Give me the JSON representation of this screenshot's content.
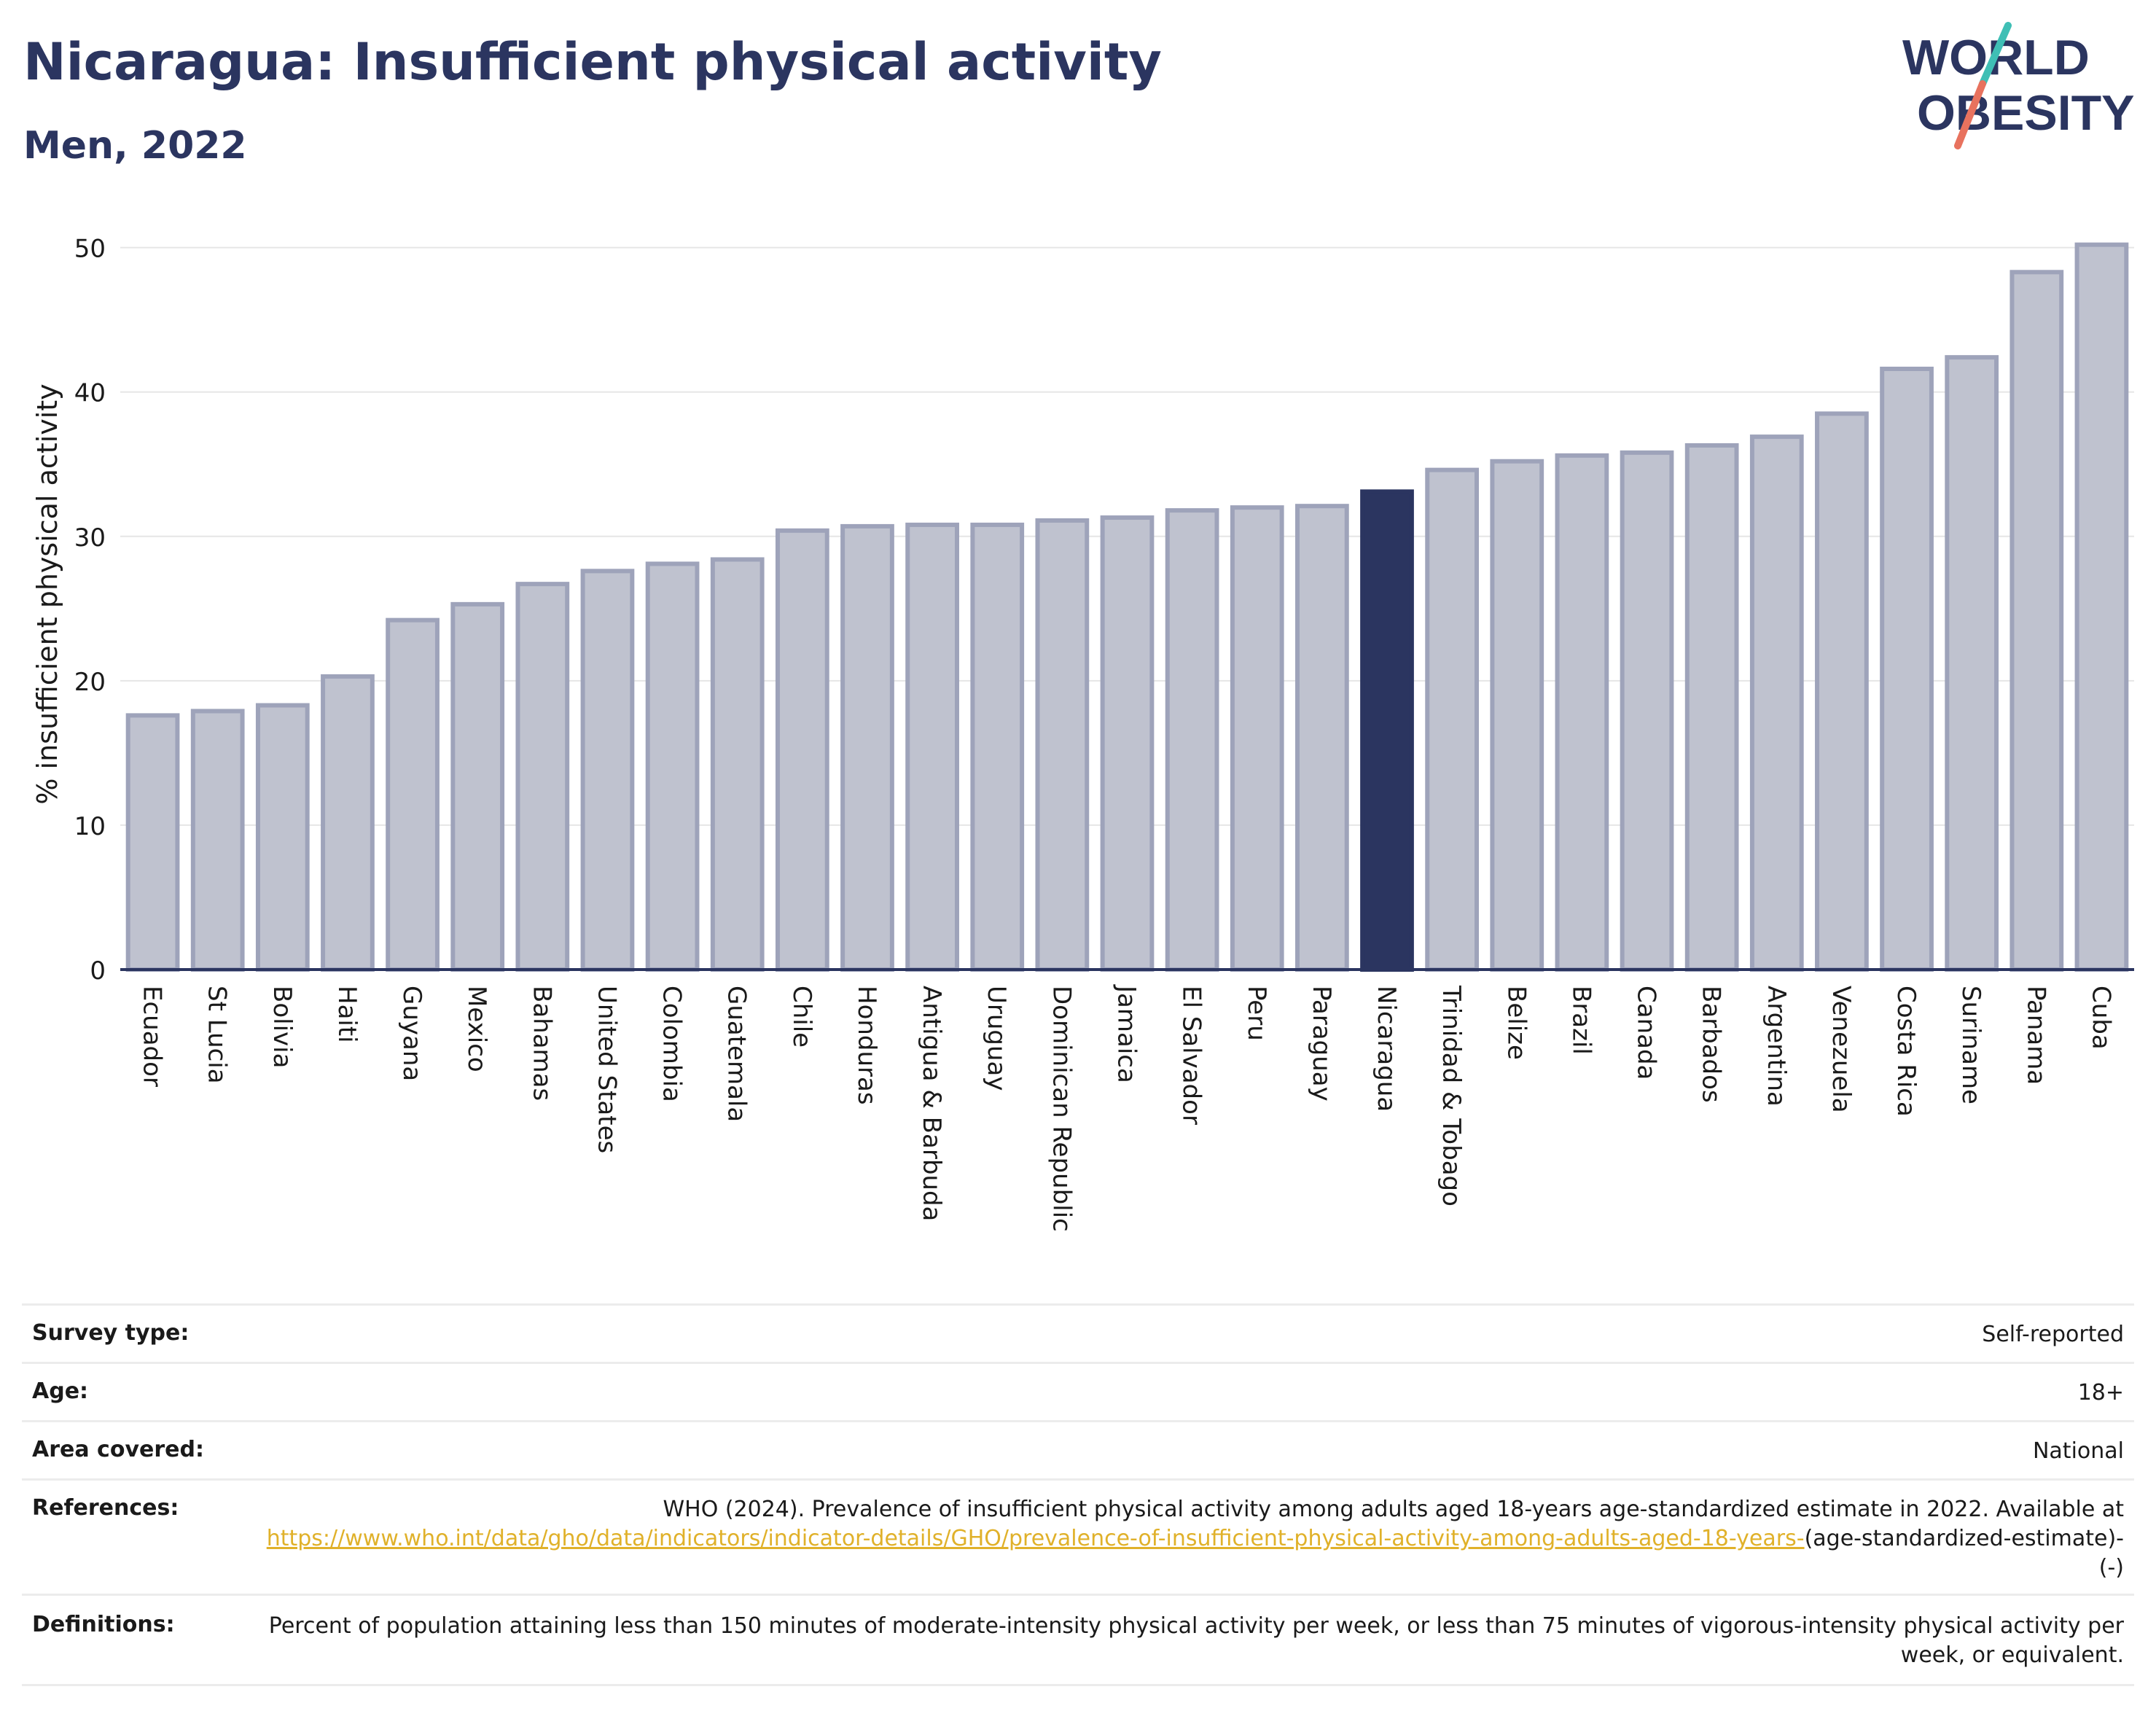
{
  "title": "Nicaragua: Insufficient physical activity",
  "subtitle": "Men, 2022",
  "logo": {
    "line1": "WORLD",
    "line2": "OBESITY",
    "text_color": "#2b3560",
    "slash_top_color": "#3fbfb5",
    "slash_bottom_color": "#e8725e"
  },
  "colors": {
    "bar": "#bfc2cf",
    "bar_border": "#9ea3ba",
    "highlight": "#2b3560",
    "grid": "#e6e6e6",
    "axis": "#2b3560"
  },
  "chart_data": {
    "type": "bar",
    "ylabel": "% insufficient physical activity",
    "xlabel": "",
    "ylim": [
      0,
      52
    ],
    "yticks": [
      0,
      10,
      20,
      30,
      40,
      50
    ],
    "grid": true,
    "highlight": "Nicaragua",
    "categories": [
      "Ecuador",
      "St Lucia",
      "Bolivia",
      "Haiti",
      "Guyana",
      "Mexico",
      "Bahamas",
      "United States",
      "Colombia",
      "Guatemala",
      "Chile",
      "Honduras",
      "Antigua & Barbuda",
      "Uruguay",
      "Dominican Republic",
      "Jamaica",
      "El Salvador",
      "Peru",
      "Paraguay",
      "Nicaragua",
      "Trinidad & Tobago",
      "Belize",
      "Brazil",
      "Canada",
      "Barbados",
      "Argentina",
      "Venezuela",
      "Costa Rica",
      "Suriname",
      "Panama",
      "Cuba"
    ],
    "values": [
      17.6,
      17.9,
      18.3,
      20.3,
      24.2,
      25.3,
      26.7,
      27.6,
      28.1,
      28.4,
      30.4,
      30.7,
      30.8,
      30.8,
      31.1,
      31.3,
      31.8,
      32.0,
      32.1,
      33.1,
      34.6,
      35.2,
      35.6,
      35.8,
      36.3,
      36.9,
      38.5,
      41.6,
      42.4,
      48.3,
      50.2
    ]
  },
  "meta": [
    {
      "label": "Survey type:",
      "value": "Self-reported"
    },
    {
      "label": "Age:",
      "value": "18+"
    },
    {
      "label": "Area covered:",
      "value": "National"
    },
    {
      "label": "References:",
      "value_pre": "WHO (2024). Prevalence of insufficient physical activity among adults aged 18-years age-standardized estimate in 2022. Available at",
      "link": "https://www.who.int/data/gho/data/indicators/indicator-details/GHO/prevalence-of-insufficient-physical-activity-among-adults-aged-18-years-",
      "value_post": "(age-standardized-estimate)-(-)"
    },
    {
      "label": "Definitions:",
      "value": "Percent of population attaining less than 150 minutes of moderate-intensity physical activity per week, or less than 75 minutes of vigorous-intensity physical activity per week, or equivalent."
    }
  ]
}
